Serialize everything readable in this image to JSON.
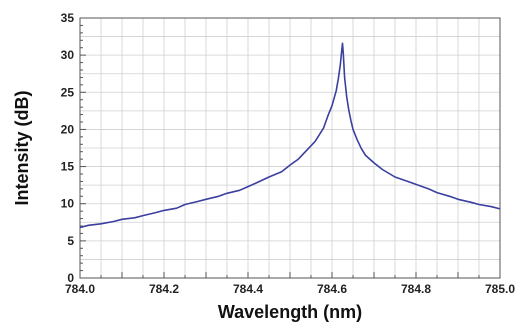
{
  "chart_data": {
    "type": "line",
    "title": "",
    "xlabel": "Wavelength (nm)",
    "ylabel": "Intensity (dB)",
    "xlim": [
      784.0,
      785.0
    ],
    "ylim": [
      0,
      35
    ],
    "grid": true,
    "x_ticks": [
      "784.0",
      "784.2",
      "784.4",
      "784.6",
      "784.8",
      "785.0"
    ],
    "y_ticks": [
      "0",
      "5",
      "10",
      "15",
      "20",
      "25",
      "30",
      "35"
    ],
    "line_color": "#3a3fa0",
    "grid_color": "#d0d0d0",
    "series": [
      {
        "x": [
          784.0,
          784.02,
          784.05,
          784.08,
          784.1,
          784.13,
          784.15,
          784.18,
          784.2,
          784.23,
          784.25,
          784.28,
          784.3,
          784.33,
          784.35,
          784.38,
          784.4,
          784.42,
          784.45,
          784.48,
          784.5,
          784.52,
          784.54,
          784.56,
          784.58,
          784.59,
          784.6,
          784.61,
          784.615,
          784.62,
          784.623,
          784.625,
          784.627,
          784.63,
          784.635,
          784.64,
          784.645,
          784.65,
          784.66,
          784.67,
          784.68,
          784.7,
          784.72,
          784.75,
          784.78,
          784.8,
          784.83,
          784.85,
          784.88,
          784.9,
          784.93,
          784.95,
          784.98,
          785.0
        ],
        "y": [
          6.8,
          7.1,
          7.3,
          7.6,
          7.9,
          8.1,
          8.4,
          8.8,
          9.1,
          9.4,
          9.9,
          10.3,
          10.6,
          11.0,
          11.4,
          11.8,
          12.3,
          12.8,
          13.6,
          14.3,
          15.2,
          16.0,
          17.2,
          18.4,
          20.2,
          21.8,
          23.2,
          25.2,
          26.8,
          28.8,
          30.6,
          31.6,
          30.2,
          27.0,
          24.4,
          22.6,
          21.2,
          20.0,
          18.6,
          17.4,
          16.5,
          15.5,
          14.6,
          13.6,
          13.0,
          12.6,
          12.0,
          11.5,
          11.0,
          10.6,
          10.2,
          9.9,
          9.6,
          9.3
        ]
      }
    ]
  }
}
